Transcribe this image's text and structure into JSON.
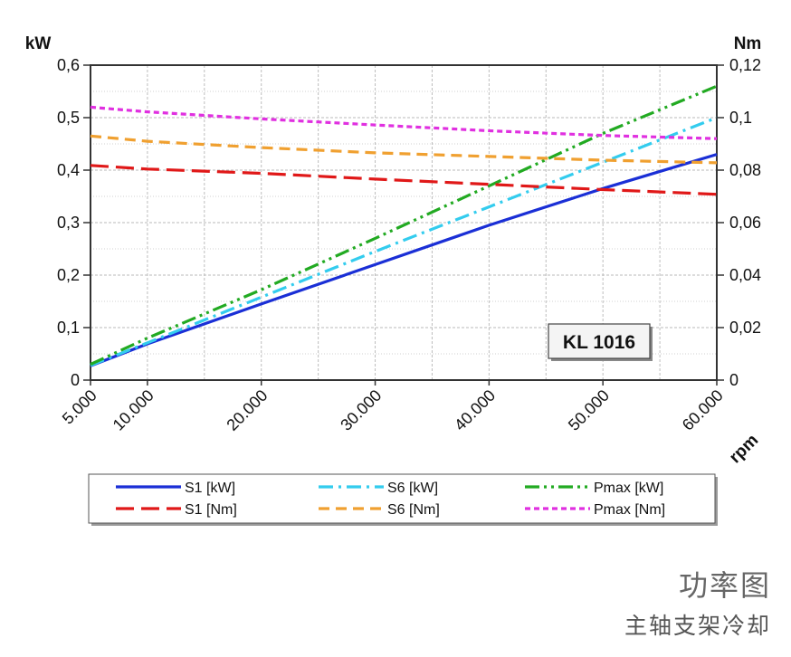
{
  "chart_data": {
    "type": "line",
    "x": [
      5000,
      10000,
      20000,
      30000,
      40000,
      50000,
      60000
    ],
    "xlabel": "rpm",
    "x_tick_labels": [
      "5.000",
      "10.000",
      "20.000",
      "30.000",
      "40.000",
      "50.000",
      "60.000"
    ],
    "xlim": [
      5000,
      60000
    ],
    "y_left": {
      "label": "kW",
      "ylim": [
        0,
        0.6
      ],
      "ticks": [
        0,
        0.1,
        0.2,
        0.3,
        0.4,
        0.5,
        0.6
      ],
      "tick_labels": [
        "0",
        "0,1",
        "0,2",
        "0,3",
        "0,4",
        "0,5",
        "0,6"
      ]
    },
    "y_right": {
      "label": "Nm",
      "ylim": [
        0,
        0.12
      ],
      "ticks": [
        0,
        0.02,
        0.04,
        0.06,
        0.08,
        0.1,
        0.12
      ],
      "tick_labels": [
        "0",
        "0,02",
        "0,04",
        "0,06",
        "0,08",
        "0,1",
        "0,12"
      ]
    },
    "grid": true,
    "annotation": "KL 1016",
    "legend_position": "bottom",
    "series": [
      {
        "name": "S1 [kW]",
        "axis": "left",
        "color": "#1a2fd6",
        "dash": "solid",
        "values": [
          0.027,
          0.069,
          0.145,
          0.22,
          0.295,
          0.365,
          0.43
        ]
      },
      {
        "name": "S6 [kW]",
        "axis": "left",
        "color": "#33ccee",
        "dash": "dashdot",
        "values": [
          0.028,
          0.071,
          0.158,
          0.245,
          0.33,
          0.415,
          0.5
        ]
      },
      {
        "name": "Pmax [kW]",
        "axis": "left",
        "color": "#22aa22",
        "dash": "dashdotdot",
        "values": [
          0.03,
          0.08,
          0.172,
          0.27,
          0.37,
          0.47,
          0.56
        ]
      },
      {
        "name": "S1 [Nm]",
        "axis": "right",
        "color": "#e01818",
        "dash": "longdash",
        "values": [
          0.0818,
          0.0804,
          0.0788,
          0.0766,
          0.0746,
          0.0726,
          0.0708
        ]
      },
      {
        "name": "S6 [Nm]",
        "axis": "right",
        "color": "#f0a030",
        "dash": "dash",
        "values": [
          0.093,
          0.091,
          0.0886,
          0.0866,
          0.0852,
          0.0838,
          0.0828
        ]
      },
      {
        "name": "Pmax [Nm]",
        "axis": "right",
        "color": "#e030e0",
        "dash": "shortdash",
        "values": [
          0.104,
          0.1022,
          0.0995,
          0.0972,
          0.095,
          0.0932,
          0.092
        ]
      }
    ]
  },
  "caption": {
    "title": "功率图",
    "subtitle": "主轴支架冷却"
  }
}
